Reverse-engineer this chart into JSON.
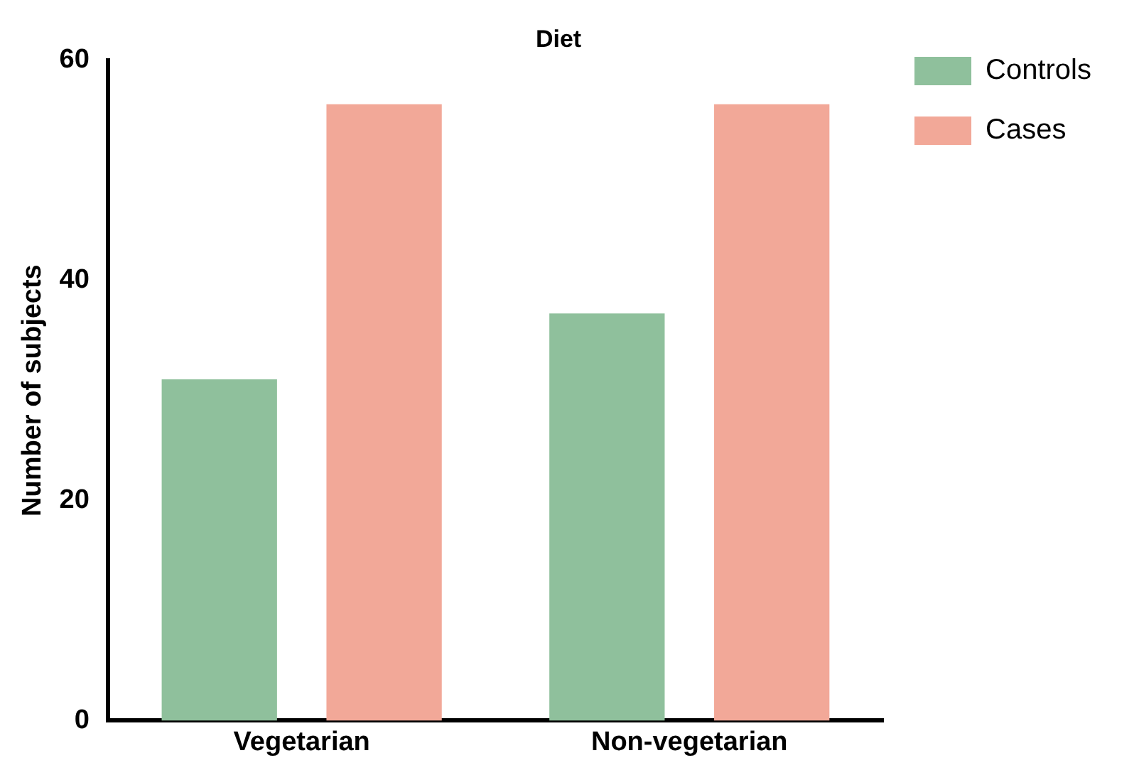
{
  "chart_data": {
    "type": "bar",
    "title": "Diet",
    "ylabel": "Number of subjects",
    "categories": [
      "Vegetarian",
      "Non-vegetarian"
    ],
    "series": [
      {
        "name": "Controls",
        "color": "#8fc09c",
        "values": [
          31,
          37
        ]
      },
      {
        "name": "Cases",
        "color": "#f2a898",
        "values": [
          56,
          56
        ]
      }
    ],
    "ylim": [
      0,
      60
    ],
    "yticks": [
      0,
      20,
      40,
      60
    ],
    "grid": false,
    "legend": "top right"
  }
}
